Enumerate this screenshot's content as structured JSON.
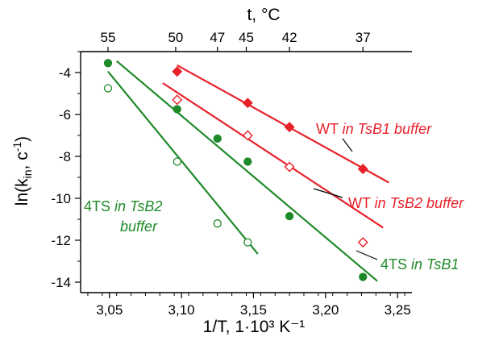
{
  "chart_data": {
    "type": "scatter",
    "xlabel": "1/T, 1·10³ K⁻¹",
    "ylabel": "ln(k",
    "ylabel_sub": "in",
    "ylabel_suffix": ", c",
    "ylabel_sup": "-1",
    "ylabel_close": ")",
    "top_axis_label": "t, °C",
    "xlim": [
      3.03,
      3.26
    ],
    "ylim": [
      -14.5,
      -3
    ],
    "x_ticks": [
      "3,05",
      "3,10",
      "3,15",
      "3,20",
      "3,25"
    ],
    "x_tick_values": [
      3.05,
      3.1,
      3.15,
      3.2,
      3.25
    ],
    "y_ticks": [
      "-4",
      "-6",
      "-8",
      "-10",
      "-12",
      "-14"
    ],
    "y_tick_values": [
      -4,
      -6,
      -8,
      -10,
      -12,
      -14
    ],
    "top_ticks": [
      "55",
      "50",
      "47",
      "45",
      "42",
      "37"
    ],
    "top_tick_values": [
      3.049,
      3.096,
      3.125,
      3.145,
      3.175,
      3.226
    ],
    "series": [
      {
        "name": "WT in TsB1 buffer",
        "color": "#e8212a",
        "marker": "filled-diamond",
        "x": [
          3.097,
          3.146,
          3.175,
          3.226
        ],
        "y": [
          -3.95,
          -5.45,
          -6.6,
          -8.6
        ],
        "fit_x": [
          3.097,
          3.244
        ],
        "fit_y": [
          -3.65,
          -9.25
        ]
      },
      {
        "name": "WT in TsB2 buffer",
        "color": "#e8212a",
        "marker": "open-diamond",
        "x": [
          3.097,
          3.146,
          3.175,
          3.226
        ],
        "y": [
          -5.3,
          -7.0,
          -8.5,
          -12.1
        ],
        "fit_x": [
          3.087,
          3.24
        ],
        "fit_y": [
          -4.5,
          -11.4
        ]
      },
      {
        "name": "4TS in TsB1",
        "color": "#1f8a2a",
        "marker": "filled-circle",
        "x": [
          3.049,
          3.097,
          3.125,
          3.146,
          3.175,
          3.226
        ],
        "y": [
          -3.55,
          -5.75,
          -7.15,
          -8.25,
          -10.85,
          -13.75
        ],
        "fit_x": [
          3.055,
          3.236
        ],
        "fit_y": [
          -3.45,
          -13.95
        ]
      },
      {
        "name": "4TS in TsB2 buffer",
        "color": "#1f8a2a",
        "marker": "open-circle",
        "x": [
          3.049,
          3.097,
          3.125,
          3.146
        ],
        "y": [
          -4.75,
          -8.25,
          -11.2,
          -12.1
        ],
        "fit_x": [
          3.049,
          3.153
        ],
        "fit_y": [
          -3.95,
          -12.65
        ]
      }
    ],
    "annotations": [
      {
        "plain": "WT ",
        "italic": "in TsB1 buffer",
        "color": "#e8212a"
      },
      {
        "plain": "WT ",
        "italic": "in TsB2 buffer",
        "color": "#e8212a"
      },
      {
        "plain": "4TS ",
        "italic": "in TsB1",
        "color": "#1f8a2a"
      },
      {
        "plain": "4TS ",
        "italic": "in TsB2",
        "color": "#1f8a2a",
        "line2": "buffer"
      }
    ]
  }
}
